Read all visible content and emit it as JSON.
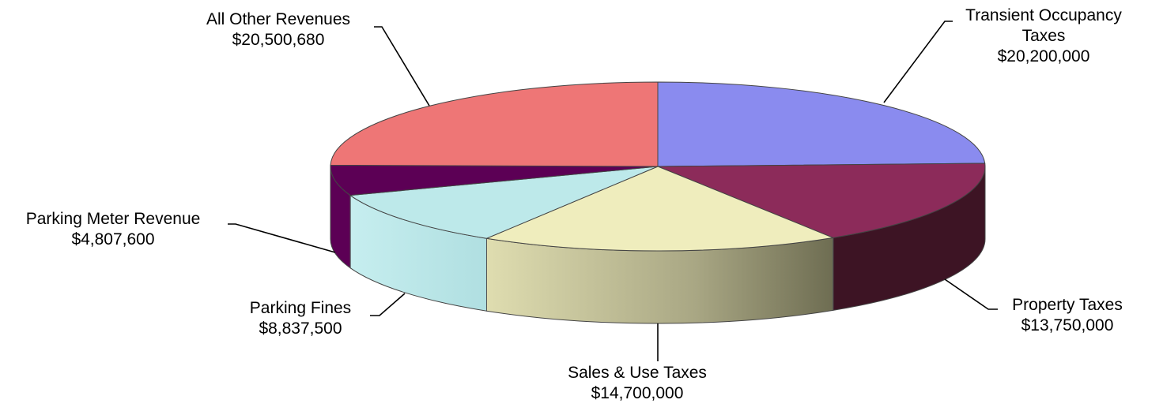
{
  "chart_data": {
    "type": "pie",
    "title": "",
    "slices": [
      {
        "name": "Transient Occupancy Taxes",
        "label_lines": [
          "Transient Occupancy",
          "Taxes"
        ],
        "value": 20200000,
        "value_label": "$20,200,000",
        "color": "#8a8bef",
        "side_color": "#5a5bb8"
      },
      {
        "name": "Property Taxes",
        "label_lines": [
          "Property Taxes"
        ],
        "value": 13750000,
        "value_label": "$13,750,000",
        "color": "#8c2b5a",
        "side_color": "#3d1424"
      },
      {
        "name": "Sales & Use Taxes",
        "label_lines": [
          "Sales & Use Taxes"
        ],
        "value": 14700000,
        "value_label": "$14,700,000",
        "color": "#efedbd",
        "side_color": "#b6b491"
      },
      {
        "name": "Parking Fines",
        "label_lines": [
          "Parking Fines"
        ],
        "value": 8837500,
        "value_label": "$8,837,500",
        "color": "#bde9ea",
        "side_color": "#b8e4e6"
      },
      {
        "name": "Parking Meter Revenue",
        "label_lines": [
          "Parking Meter Revenue"
        ],
        "value": 4807600,
        "value_label": "$4,807,600",
        "color": "#5c0055",
        "side_color": "#5c0055"
      },
      {
        "name": "All Other Revenues",
        "label_lines": [
          "All Other Revenues"
        ],
        "value": 20500680,
        "value_label": "$20,500,680",
        "color": "#ee7676",
        "side_color": "#c05050"
      }
    ]
  }
}
